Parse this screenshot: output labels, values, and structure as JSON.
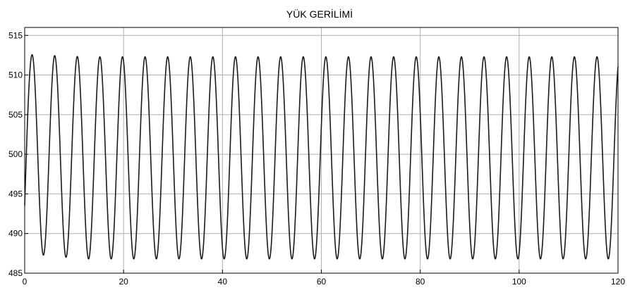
{
  "chart_data": {
    "type": "line",
    "title": "YÜK GERİLİMİ",
    "xlabel": "",
    "ylabel": "",
    "xlim": [
      0,
      120
    ],
    "ylim": [
      485,
      516
    ],
    "xticks": [
      0,
      20,
      40,
      60,
      80,
      100,
      120
    ],
    "yticks": [
      485,
      490,
      495,
      500,
      505,
      510,
      515
    ],
    "grid": true,
    "line_color": "#1a1a1a",
    "series": [
      {
        "signal": "sinusoid with start-up transient",
        "initial_value": 493.5,
        "period": 4.57,
        "first_peak_x": 1.5,
        "transient_end_x": 12,
        "early_max": 512.6,
        "early_min": 487.5,
        "steady_max": 512.3,
        "steady_min": 486.8,
        "x_end": 120
      }
    ]
  }
}
